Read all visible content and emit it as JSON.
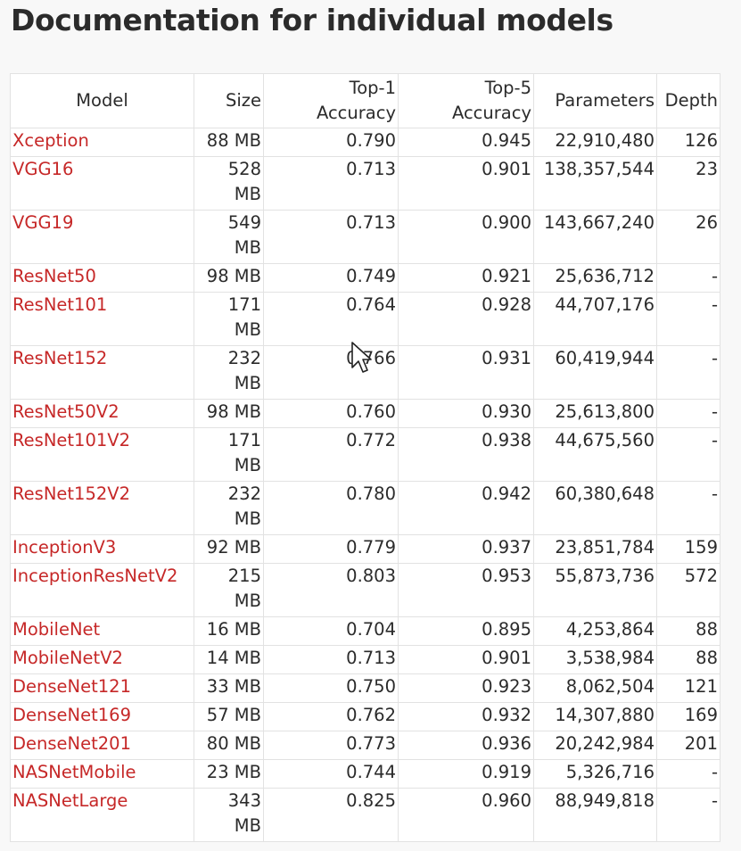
{
  "page": {
    "title": "Documentation for individual models"
  },
  "table": {
    "columns": {
      "model": "Model",
      "size": "Size",
      "top1_line1": "Top-1",
      "top1_line2": "Accuracy",
      "top5_line1": "Top-5",
      "top5_line2": "Accuracy",
      "parameters": "Parameters",
      "depth": "Depth"
    },
    "rows": [
      {
        "model": "Xception",
        "size": "88 MB",
        "top1": "0.790",
        "top5": "0.945",
        "params": "22,910,480",
        "depth": "126"
      },
      {
        "model": "VGG16",
        "size": "528 MB",
        "top1": "0.713",
        "top5": "0.901",
        "params": "138,357,544",
        "depth": "23"
      },
      {
        "model": "VGG19",
        "size": "549 MB",
        "top1": "0.713",
        "top5": "0.900",
        "params": "143,667,240",
        "depth": "26"
      },
      {
        "model": "ResNet50",
        "size": "98 MB",
        "top1": "0.749",
        "top5": "0.921",
        "params": "25,636,712",
        "depth": "-"
      },
      {
        "model": "ResNet101",
        "size": "171 MB",
        "top1": "0.764",
        "top5": "0.928",
        "params": "44,707,176",
        "depth": "-"
      },
      {
        "model": "ResNet152",
        "size": "232 MB",
        "top1": "0.766",
        "top5": "0.931",
        "params": "60,419,944",
        "depth": "-"
      },
      {
        "model": "ResNet50V2",
        "size": "98 MB",
        "top1": "0.760",
        "top5": "0.930",
        "params": "25,613,800",
        "depth": "-"
      },
      {
        "model": "ResNet101V2",
        "size": "171 MB",
        "top1": "0.772",
        "top5": "0.938",
        "params": "44,675,560",
        "depth": "-"
      },
      {
        "model": "ResNet152V2",
        "size": "232 MB",
        "top1": "0.780",
        "top5": "0.942",
        "params": "60,380,648",
        "depth": "-"
      },
      {
        "model": "InceptionV3",
        "size": "92 MB",
        "top1": "0.779",
        "top5": "0.937",
        "params": "23,851,784",
        "depth": "159"
      },
      {
        "model": "InceptionResNetV2",
        "size": "215 MB",
        "top1": "0.803",
        "top5": "0.953",
        "params": "55,873,736",
        "depth": "572"
      },
      {
        "model": "MobileNet",
        "size": "16 MB",
        "top1": "0.704",
        "top5": "0.895",
        "params": "4,253,864",
        "depth": "88"
      },
      {
        "model": "MobileNetV2",
        "size": "14 MB",
        "top1": "0.713",
        "top5": "0.901",
        "params": "3,538,984",
        "depth": "88"
      },
      {
        "model": "DenseNet121",
        "size": "33 MB",
        "top1": "0.750",
        "top5": "0.923",
        "params": "8,062,504",
        "depth": "121"
      },
      {
        "model": "DenseNet169",
        "size": "57 MB",
        "top1": "0.762",
        "top5": "0.932",
        "params": "14,307,880",
        "depth": "169"
      },
      {
        "model": "DenseNet201",
        "size": "80 MB",
        "top1": "0.773",
        "top5": "0.936",
        "params": "20,242,984",
        "depth": "201"
      },
      {
        "model": "NASNetMobile",
        "size": "23 MB",
        "top1": "0.744",
        "top5": "0.919",
        "params": "5,326,716",
        "depth": "-"
      },
      {
        "model": "NASNetLarge",
        "size": "343 MB",
        "top1": "0.825",
        "top5": "0.960",
        "params": "88,949,818",
        "depth": "-"
      }
    ]
  },
  "icons": {
    "cursor": "mouse-pointer-icon"
  }
}
